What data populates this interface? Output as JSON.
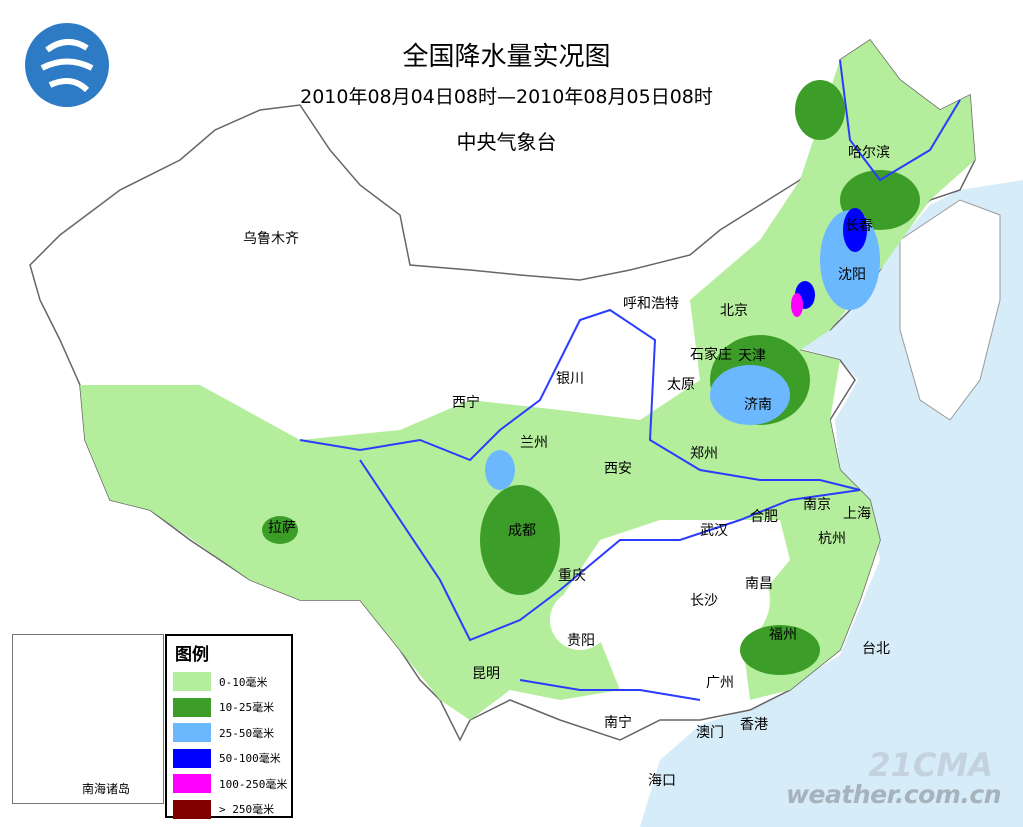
{
  "header": {
    "title": "全国降水量实况图",
    "period": "2010年08月04日08时—2010年08月05日08时",
    "issuer": "中央气象台"
  },
  "cities": [
    "哈尔滨",
    "长春",
    "沈阳",
    "乌鲁木齐",
    "呼和浩特",
    "北京",
    "天津",
    "石家庄",
    "太原",
    "济南",
    "银川",
    "西宁",
    "兰州",
    "西安",
    "郑州",
    "拉萨",
    "成都",
    "南京",
    "上海",
    "合肥",
    "武汉",
    "杭州",
    "重庆",
    "长沙",
    "南昌",
    "贵阳",
    "福州",
    "台北",
    "昆明",
    "广州",
    "南宁",
    "澳门",
    "香港",
    "海口"
  ],
  "legend": {
    "title": "图例",
    "items": [
      {
        "label": "0-10毫米",
        "color": "#b4ee9c"
      },
      {
        "label": "10-25毫米",
        "color": "#3c9e28"
      },
      {
        "label": "25-50毫米",
        "color": "#6cb8ff"
      },
      {
        "label": "50-100毫米",
        "color": "#0000ff"
      },
      {
        "label": "100-250毫米",
        "color": "#ff00ff"
      },
      {
        "label": "> 250毫米",
        "color": "#800000"
      }
    ]
  },
  "inset": {
    "label": "南海诸岛"
  },
  "watermark": {
    "line1": "21CMA",
    "line2": "weather.com.cn"
  },
  "colors": {
    "sea": "#d6ecf8",
    "river": "#2a3cff",
    "border": "#888888"
  }
}
